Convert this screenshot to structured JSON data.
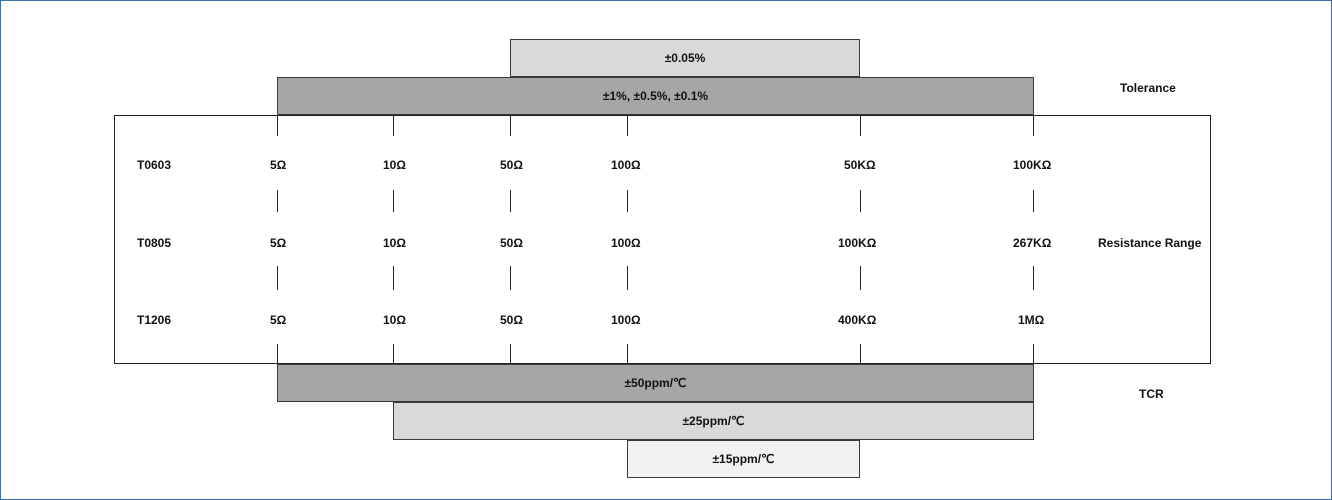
{
  "tolerance": {
    "label": "Tolerance",
    "bars": [
      "±0.05%",
      "±1%, ±0.5%, ±0.1%"
    ]
  },
  "resistance": {
    "label": "Resistance Range",
    "rows": [
      {
        "model": "T0603",
        "values": [
          "5Ω",
          "10Ω",
          "50Ω",
          "100Ω",
          "50KΩ",
          "100KΩ"
        ]
      },
      {
        "model": "T0805",
        "values": [
          "5Ω",
          "10Ω",
          "50Ω",
          "100Ω",
          "100KΩ",
          "267KΩ"
        ]
      },
      {
        "model": "T1206",
        "values": [
          "5Ω",
          "10Ω",
          "50Ω",
          "100Ω",
          "400KΩ",
          "1MΩ"
        ]
      }
    ]
  },
  "tcr": {
    "label": "TCR",
    "bars": [
      "±50ppm/℃",
      "±25ppm/℃",
      "±15ppm/℃"
    ]
  },
  "colors": {
    "dark_bar": "#a6a6a6",
    "light_bar": "#d9d9d9",
    "lightest_bar": "#f2f2f2"
  }
}
